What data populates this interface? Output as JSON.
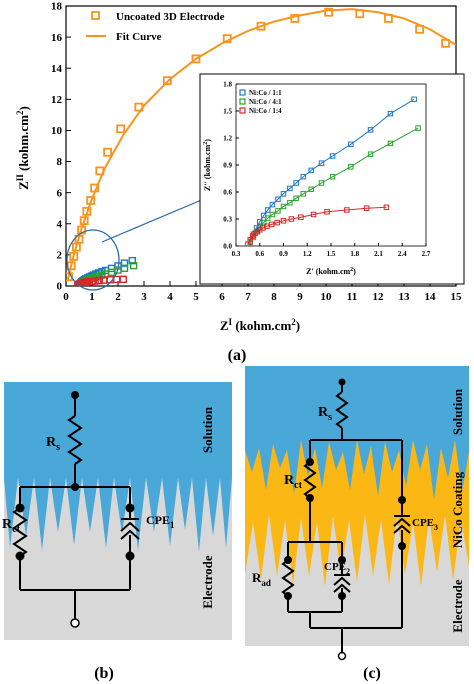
{
  "chart_data": [
    {
      "type": "scatter",
      "panel_label": "(a)",
      "xlabel": "Z' (kohm.cm²)",
      "ylabel": "Z'' (kohm.cm²)",
      "xlim": [
        0,
        15
      ],
      "ylim": [
        0,
        18
      ],
      "xticks": [
        0,
        1,
        2,
        3,
        4,
        5,
        6,
        7,
        8,
        9,
        10,
        11,
        12,
        13,
        14,
        15
      ],
      "yticks": [
        0,
        2,
        4,
        6,
        8,
        10,
        12,
        14,
        16,
        18
      ],
      "legend_position": "top-left",
      "series": [
        {
          "name": "Uncoated 3D Electrode",
          "style": "square-markers",
          "color": "#f7941d",
          "x": [
            0.1,
            0.2,
            0.3,
            0.4,
            0.5,
            0.6,
            0.7,
            0.8,
            0.95,
            1.1,
            1.3,
            1.6,
            2.1,
            2.8,
            3.9,
            5.0,
            6.2,
            7.5,
            8.8,
            10.1,
            11.3,
            12.4,
            13.6,
            14.6
          ],
          "y": [
            0.6,
            1.3,
            1.9,
            2.5,
            3.0,
            3.6,
            4.2,
            4.8,
            5.5,
            6.3,
            7.4,
            8.6,
            10.1,
            11.5,
            13.2,
            14.6,
            15.9,
            16.7,
            17.2,
            17.6,
            17.5,
            17.2,
            16.5,
            15.6
          ]
        },
        {
          "name": "Fit Curve",
          "style": "line",
          "color": "#f7941d",
          "x": [
            0.05,
            0.3,
            0.6,
            1.0,
            1.5,
            2.2,
            3.0,
            4.0,
            5.0,
            6.0,
            7.0,
            8.0,
            9.0,
            10.0,
            11.0,
            12.0,
            13.0,
            14.0,
            15.0
          ],
          "y": [
            0.3,
            2.0,
            3.7,
            5.6,
            7.6,
            9.7,
            11.6,
            13.3,
            14.6,
            15.6,
            16.4,
            17.0,
            17.4,
            17.7,
            17.8,
            17.6,
            17.2,
            16.5,
            15.5
          ]
        }
      ]
    },
    {
      "type": "scatter",
      "inset": true,
      "xlabel": "Z' (kohm.cm²)",
      "ylabel": "Z'' (kohm.cm²)",
      "xlim": [
        0.3,
        2.7
      ],
      "ylim": [
        0,
        1.8
      ],
      "xticks": [
        "0.3",
        "0.6",
        "0.9",
        "1.2",
        "1.5",
        "1.8",
        "2.1",
        "2.4",
        "2.7"
      ],
      "yticks": [
        "0.0",
        "0.3",
        "0.6",
        "0.9",
        "1.2",
        "1.5",
        "1.8"
      ],
      "legend_position": "top-left",
      "series": [
        {
          "name": "Ni:Co / 1:1",
          "color": "#1f77c8",
          "x": [
            0.48,
            0.52,
            0.56,
            0.6,
            0.65,
            0.7,
            0.76,
            0.83,
            0.9,
            0.98,
            1.06,
            1.15,
            1.25,
            1.38,
            1.52,
            1.75,
            2.0,
            2.25,
            2.55
          ],
          "y": [
            0.05,
            0.13,
            0.2,
            0.27,
            0.34,
            0.4,
            0.46,
            0.52,
            0.58,
            0.64,
            0.7,
            0.77,
            0.84,
            0.92,
            1.0,
            1.13,
            1.29,
            1.47,
            1.63
          ]
        },
        {
          "name": "Ni:Co / 4:1",
          "color": "#2ca02c",
          "x": [
            0.48,
            0.52,
            0.56,
            0.6,
            0.65,
            0.7,
            0.76,
            0.83,
            0.9,
            0.98,
            1.06,
            1.15,
            1.25,
            1.38,
            1.52,
            1.75,
            2.0,
            2.25,
            2.6
          ],
          "y": [
            0.04,
            0.1,
            0.16,
            0.21,
            0.26,
            0.31,
            0.35,
            0.39,
            0.44,
            0.48,
            0.53,
            0.58,
            0.63,
            0.7,
            0.77,
            0.88,
            1.02,
            1.14,
            1.31
          ]
        },
        {
          "name": "Ni:Co / 1:4",
          "color": "#d62728",
          "x": [
            0.45,
            0.48,
            0.51,
            0.54,
            0.57,
            0.6,
            0.64,
            0.69,
            0.75,
            0.82,
            0.9,
            1.0,
            1.12,
            1.28,
            1.45,
            1.7,
            1.95,
            2.2
          ],
          "y": [
            0.02,
            0.07,
            0.11,
            0.14,
            0.16,
            0.18,
            0.2,
            0.22,
            0.24,
            0.26,
            0.28,
            0.3,
            0.32,
            0.35,
            0.38,
            0.4,
            0.42,
            0.43
          ]
        }
      ]
    }
  ],
  "panels": {
    "b": {
      "label": "(b)",
      "resistor_s": "R",
      "resistor_s_sub": "s",
      "resistor_ct": "R",
      "resistor_ct_sub": "ct",
      "cpe": "CPE",
      "cpe_sub": "1",
      "solution_label": "Solution",
      "electrode_label": "Electrode"
    },
    "c": {
      "label": "(c)",
      "resistor_s": "R",
      "resistor_s_sub": "s",
      "resistor_ct": "R",
      "resistor_ct_sub": "ct",
      "resistor_ad": "R",
      "resistor_ad_sub": "ad",
      "cpe2": "CPE",
      "cpe2_sub": "2",
      "cpe3": "CPE",
      "cpe3_sub": "3",
      "solution_label": "Solution",
      "coating_label": "NiCo Coating",
      "electrode_label": "Electrode"
    }
  },
  "colors": {
    "solution": "#4aa8d8",
    "electrode": "#d8d8d8",
    "coating": "#fbb713",
    "orange": "#f7941d",
    "blue": "#1f77c8",
    "green": "#2ca02c",
    "red": "#d62728"
  }
}
